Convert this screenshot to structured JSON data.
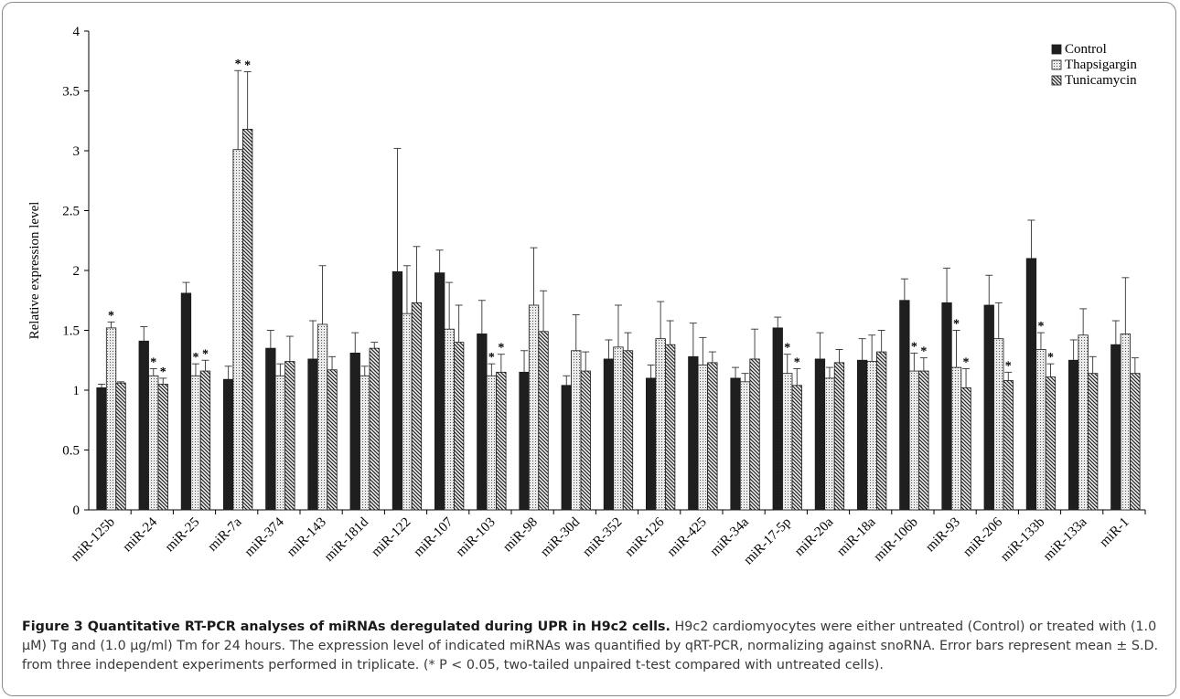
{
  "chart_data": {
    "type": "bar",
    "title": "",
    "xlabel": "",
    "ylabel": "Relative expression level",
    "ylim": [
      0,
      4
    ],
    "yticks": [
      "0",
      "0.5",
      "1",
      "1.5",
      "2",
      "2.5",
      "3",
      "3.5",
      "4"
    ],
    "grid": false,
    "legend_position": "top-right",
    "categories": [
      "miR-125b",
      "miR-24",
      "miR-25",
      "miR-7a",
      "miR-374",
      "miR-143",
      "miR-181d",
      "miR-122",
      "miR-107",
      "miR-103",
      "miR-98",
      "miR-30d",
      "miR-352",
      "miR-126",
      "miR-425",
      "miR-34a",
      "miR-17-5p",
      "miR-20a",
      "miR-18a",
      "miR-106b",
      "miR-93",
      "miR-206",
      "miR-133b",
      "miR-133a",
      "miR-1"
    ],
    "series": [
      {
        "name": "Control",
        "pattern": "solid",
        "values": [
          1.02,
          1.41,
          1.81,
          1.09,
          1.35,
          1.26,
          1.31,
          1.99,
          1.98,
          1.47,
          1.15,
          1.04,
          1.26,
          1.1,
          1.28,
          1.1,
          1.52,
          1.26,
          1.25,
          1.75,
          1.73,
          1.71,
          2.1,
          1.25,
          1.38
        ],
        "errors": [
          0.03,
          0.12,
          0.09,
          0.11,
          0.15,
          0.32,
          0.17,
          1.03,
          0.19,
          0.28,
          0.18,
          0.08,
          0.16,
          0.11,
          0.28,
          0.09,
          0.09,
          0.22,
          0.18,
          0.18,
          0.29,
          0.25,
          0.32,
          0.17,
          0.2
        ]
      },
      {
        "name": "Thapsigargin",
        "pattern": "dotted",
        "values": [
          1.52,
          1.12,
          1.12,
          3.01,
          1.12,
          1.55,
          1.12,
          1.64,
          1.51,
          1.12,
          1.71,
          1.33,
          1.36,
          1.43,
          1.21,
          1.07,
          1.14,
          1.1,
          1.24,
          1.16,
          1.19,
          1.43,
          1.34,
          1.46,
          1.47
        ],
        "errors": [
          0.05,
          0.06,
          0.1,
          0.66,
          0.1,
          0.49,
          0.08,
          0.4,
          0.39,
          0.1,
          0.48,
          0.3,
          0.35,
          0.31,
          0.23,
          0.07,
          0.16,
          0.09,
          0.22,
          0.15,
          0.31,
          0.3,
          0.14,
          0.22,
          0.47
        ]
      },
      {
        "name": "Tunicamycin",
        "pattern": "hatched",
        "values": [
          1.06,
          1.05,
          1.16,
          3.18,
          1.24,
          1.17,
          1.35,
          1.73,
          1.4,
          1.15,
          1.49,
          1.16,
          1.33,
          1.38,
          1.23,
          1.26,
          1.04,
          1.23,
          1.32,
          1.16,
          1.02,
          1.08,
          1.11,
          1.14,
          1.14
        ]
      }
    ],
    "tunicamycin_errors": [
      0.01,
      0.05,
      0.09,
      0.48,
      0.21,
      0.11,
      0.05,
      0.47,
      0.31,
      0.15,
      0.34,
      0.16,
      0.15,
      0.2,
      0.09,
      0.25,
      0.14,
      0.11,
      0.18,
      0.11,
      0.16,
      0.07,
      0.11,
      0.14,
      0.13
    ],
    "significance_marker": "*",
    "significance": [
      {
        "category": "miR-125b",
        "series": "Thapsigargin"
      },
      {
        "category": "miR-24",
        "series": "Thapsigargin"
      },
      {
        "category": "miR-24",
        "series": "Tunicamycin"
      },
      {
        "category": "miR-25",
        "series": "Thapsigargin"
      },
      {
        "category": "miR-25",
        "series": "Tunicamycin"
      },
      {
        "category": "miR-7a",
        "series": "Thapsigargin"
      },
      {
        "category": "miR-7a",
        "series": "Tunicamycin"
      },
      {
        "category": "miR-103",
        "series": "Thapsigargin"
      },
      {
        "category": "miR-103",
        "series": "Tunicamycin"
      },
      {
        "category": "miR-17-5p",
        "series": "Thapsigargin"
      },
      {
        "category": "miR-17-5p",
        "series": "Tunicamycin"
      },
      {
        "category": "miR-106b",
        "series": "Thapsigargin"
      },
      {
        "category": "miR-106b",
        "series": "Tunicamycin"
      },
      {
        "category": "miR-93",
        "series": "Thapsigargin"
      },
      {
        "category": "miR-93",
        "series": "Tunicamycin"
      },
      {
        "category": "miR-206",
        "series": "Tunicamycin"
      },
      {
        "category": "miR-133b",
        "series": "Thapsigargin"
      },
      {
        "category": "miR-133b",
        "series": "Tunicamycin"
      }
    ]
  },
  "caption": {
    "lead": "Figure 3 Quantitative RT-PCR analyses of miRNAs deregulated during UPR in H9c2 cells.",
    "text": "H9c2 cardiomyocytes were either untreated (Control) or treated with (1.0 µM) Tg and (1.0 µg/ml) Tm for 24 hours. The expression level of indicated miRNAs was quantified by qRT-PCR, normalizing against snoRNA. Error bars represent mean ± S.D. from three independent experiments performed in triplicate. (* P < 0.05, two-tailed unpaired t-test compared with untreated cells)."
  },
  "colors": {
    "control": "#1f1f1f",
    "thapsigargin_fill": "#ebebeb",
    "tunicamycin_fill": "#f2f2f2",
    "axis": "#000000"
  }
}
